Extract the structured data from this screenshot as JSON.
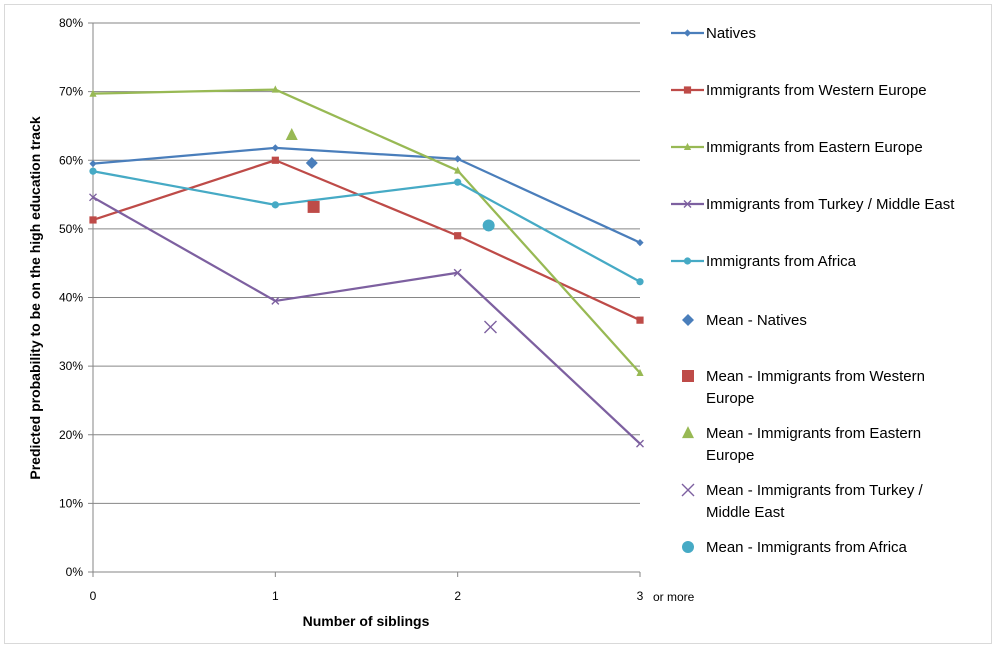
{
  "chart_data": {
    "type": "line",
    "xlabel": "Number of siblings",
    "ylabel": "Predicted probability to be on the high education track",
    "x": [
      0,
      1,
      2,
      3
    ],
    "x_tick_labels": [
      "0",
      "1",
      "2",
      "3"
    ],
    "x_last_tick_suffix": "or more",
    "ylim": [
      0,
      80
    ],
    "y_ticks": [
      0,
      10,
      20,
      30,
      40,
      50,
      60,
      70,
      80
    ],
    "y_tick_labels": [
      "0%",
      "10%",
      "20%",
      "30%",
      "40%",
      "50%",
      "60%",
      "70%",
      "80%"
    ],
    "grid": "horizontal",
    "legend_position": "right",
    "series": [
      {
        "name": "Natives",
        "color": "#4a7ebb",
        "marker": "diamond",
        "values": [
          59.5,
          61.8,
          60.2,
          48.0
        ]
      },
      {
        "name": "Immigrants from Western Europe",
        "color": "#be4b48",
        "marker": "square",
        "values": [
          51.3,
          60.0,
          49.0,
          36.7
        ]
      },
      {
        "name": "Immigrants from Eastern Europe",
        "color": "#98b954",
        "marker": "triangle",
        "values": [
          69.7,
          70.3,
          58.5,
          29.0
        ]
      },
      {
        "name": "Immigrants from Turkey / Middle East",
        "color": "#7d60a0",
        "marker": "x",
        "values": [
          54.6,
          39.5,
          43.6,
          18.7
        ]
      },
      {
        "name": "Immigrants from Africa",
        "color": "#46aac5",
        "marker": "circle",
        "values": [
          58.4,
          53.5,
          56.8,
          42.3
        ]
      }
    ],
    "means": [
      {
        "name": "Mean - Natives",
        "legend_lines": [
          "Mean - Natives"
        ],
        "color": "#4a7ebb",
        "marker": "diamond",
        "x": 1.2,
        "y": 59.6
      },
      {
        "name": "Mean - Immigrants from Western Europe",
        "legend_lines": [
          "Mean - Immigrants from Western",
          "Europe"
        ],
        "color": "#be4b48",
        "marker": "square",
        "x": 1.21,
        "y": 53.2
      },
      {
        "name": "Mean - Immigrants from Eastern Europe",
        "legend_lines": [
          "Mean - Immigrants from Eastern",
          "Europe"
        ],
        "color": "#98b954",
        "marker": "triangle",
        "x": 1.09,
        "y": 63.7
      },
      {
        "name": "Mean - Immigrants from Turkey / Middle East",
        "legend_lines": [
          "Mean - Immigrants from Turkey /",
          "Middle East"
        ],
        "color": "#7d60a0",
        "marker": "x",
        "x": 2.18,
        "y": 35.7
      },
      {
        "name": "Mean - Immigrants from Africa",
        "legend_lines": [
          "Mean - Immigrants from Africa"
        ],
        "color": "#46aac5",
        "marker": "circle",
        "x": 2.17,
        "y": 50.5
      }
    ]
  }
}
